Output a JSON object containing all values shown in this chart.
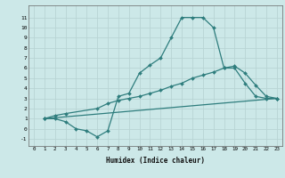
{
  "xlabel": "Humidex (Indice chaleur)",
  "background_color": "#cce8e8",
  "grid_color": "#b8d4d4",
  "line_color": "#2e7d7d",
  "xlim": [
    -0.5,
    23.5
  ],
  "ylim": [
    -1.7,
    12.2
  ],
  "xticks": [
    0,
    1,
    2,
    3,
    4,
    5,
    6,
    7,
    8,
    9,
    10,
    11,
    12,
    13,
    14,
    15,
    16,
    17,
    18,
    19,
    20,
    21,
    22,
    23
  ],
  "yticks": [
    -1,
    0,
    1,
    2,
    3,
    4,
    5,
    6,
    7,
    8,
    9,
    10,
    11
  ],
  "line1_x": [
    1,
    2,
    3,
    4,
    5,
    6,
    7,
    8,
    9,
    10,
    11,
    12,
    13,
    14,
    15,
    16,
    17,
    18,
    19,
    20,
    21,
    22,
    23
  ],
  "line1_y": [
    1,
    1,
    0.7,
    0,
    -0.2,
    -0.8,
    -0.2,
    3.2,
    3.5,
    5.5,
    6.3,
    7.0,
    9.0,
    11.0,
    11.0,
    11.0,
    10.0,
    6.0,
    6.0,
    4.5,
    3.2,
    3.0,
    3.0
  ],
  "line2_x": [
    1,
    2,
    3,
    6,
    7,
    8,
    9,
    10,
    11,
    12,
    13,
    14,
    15,
    16,
    17,
    18,
    19,
    20,
    21,
    22,
    23
  ],
  "line2_y": [
    1,
    1.3,
    1.5,
    2.0,
    2.5,
    2.8,
    3.0,
    3.2,
    3.5,
    3.8,
    4.2,
    4.5,
    5.0,
    5.3,
    5.6,
    6.0,
    6.2,
    5.5,
    4.3,
    3.2,
    3.0
  ],
  "line3_x": [
    1,
    23
  ],
  "line3_y": [
    1,
    3.0
  ]
}
